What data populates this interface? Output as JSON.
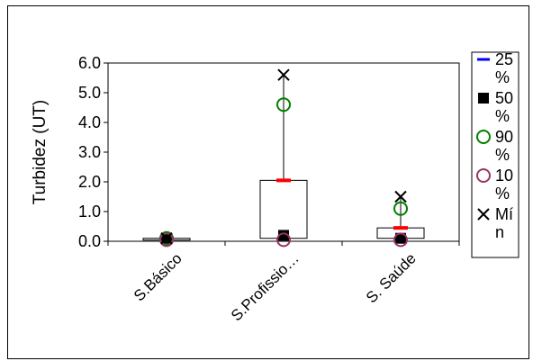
{
  "chart_data": {
    "type": "box",
    "categories": [
      "S.Básico",
      "S.Profissio…",
      "S. Saúde"
    ],
    "ylabel": "Turbidez (UT)",
    "ylim": [
      0,
      6.0
    ],
    "yticks": [
      "0.0",
      "1.0",
      "2.0",
      "3.0",
      "4.0",
      "5.0",
      "6.0"
    ],
    "series": [
      {
        "name": "25 %",
        "marker": "dash",
        "color": "#0000ff",
        "values": [
          0.06,
          0.1,
          0.1
        ]
      },
      {
        "name": "50 %",
        "marker": "square",
        "color": "#000000",
        "values": [
          0.1,
          0.2,
          0.1
        ]
      },
      {
        "name": "90 %",
        "marker": "circle",
        "color": "#008000",
        "values": [
          0.1,
          4.6,
          1.1
        ]
      },
      {
        "name": "10 %",
        "marker": "circle",
        "color": "#993366",
        "values": [
          0.05,
          0.05,
          0.05
        ]
      },
      {
        "name": "Mí n",
        "marker": "x",
        "color": "#000000",
        "values": [
          0.1,
          5.6,
          1.5
        ]
      }
    ],
    "boxes": [
      {
        "low": 0.06,
        "high": 0.1,
        "mean": 0.1
      },
      {
        "low": 0.1,
        "high": 2.05,
        "mean": 2.05
      },
      {
        "low": 0.1,
        "high": 0.45,
        "mean": 0.45
      }
    ],
    "mean_color": "#ff0000",
    "legend_position": "right"
  }
}
